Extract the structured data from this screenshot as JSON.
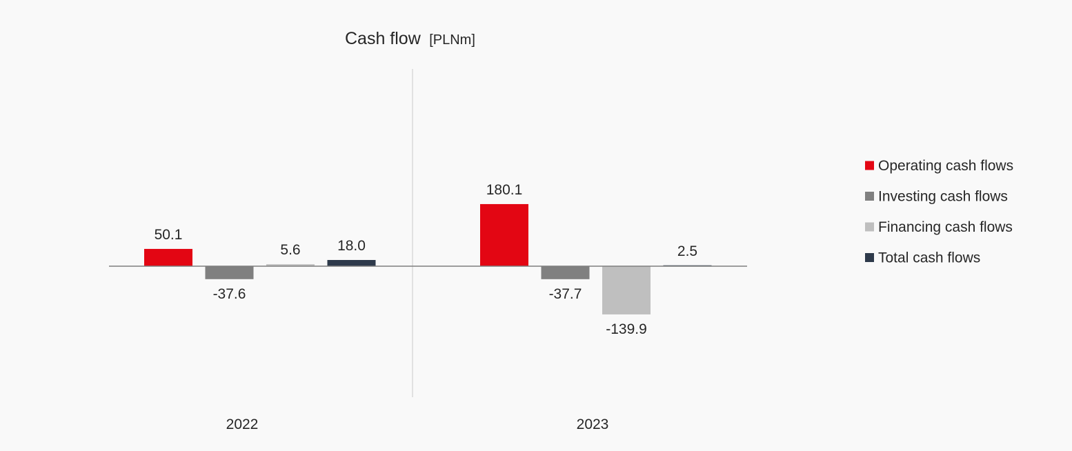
{
  "chart_data": {
    "type": "bar",
    "title": "Cash flow",
    "title_unit": "[PLNm]",
    "categories": [
      "2022",
      "2023"
    ],
    "series": [
      {
        "name": "Operating cash flows",
        "color": "#e30613",
        "values": [
          50.1,
          180.1
        ],
        "labels": [
          "50.1",
          "180.1"
        ]
      },
      {
        "name": "Investing cash flows",
        "color": "#808080",
        "values": [
          -37.6,
          -37.7
        ],
        "labels": [
          "-37.6",
          "-37.7"
        ]
      },
      {
        "name": "Financing cash flows",
        "color": "#bfbfbf",
        "values": [
          5.6,
          -139.9
        ],
        "labels": [
          "5.6",
          "-139.9"
        ]
      },
      {
        "name": "Total cash flows",
        "color": "#2e3a4b",
        "values": [
          18.0,
          2.5
        ],
        "labels": [
          "18.0",
          "2.5"
        ]
      }
    ],
    "ylim": [
      -300,
      300
    ],
    "grid": false,
    "legend_position": "right",
    "category_separator": true
  }
}
